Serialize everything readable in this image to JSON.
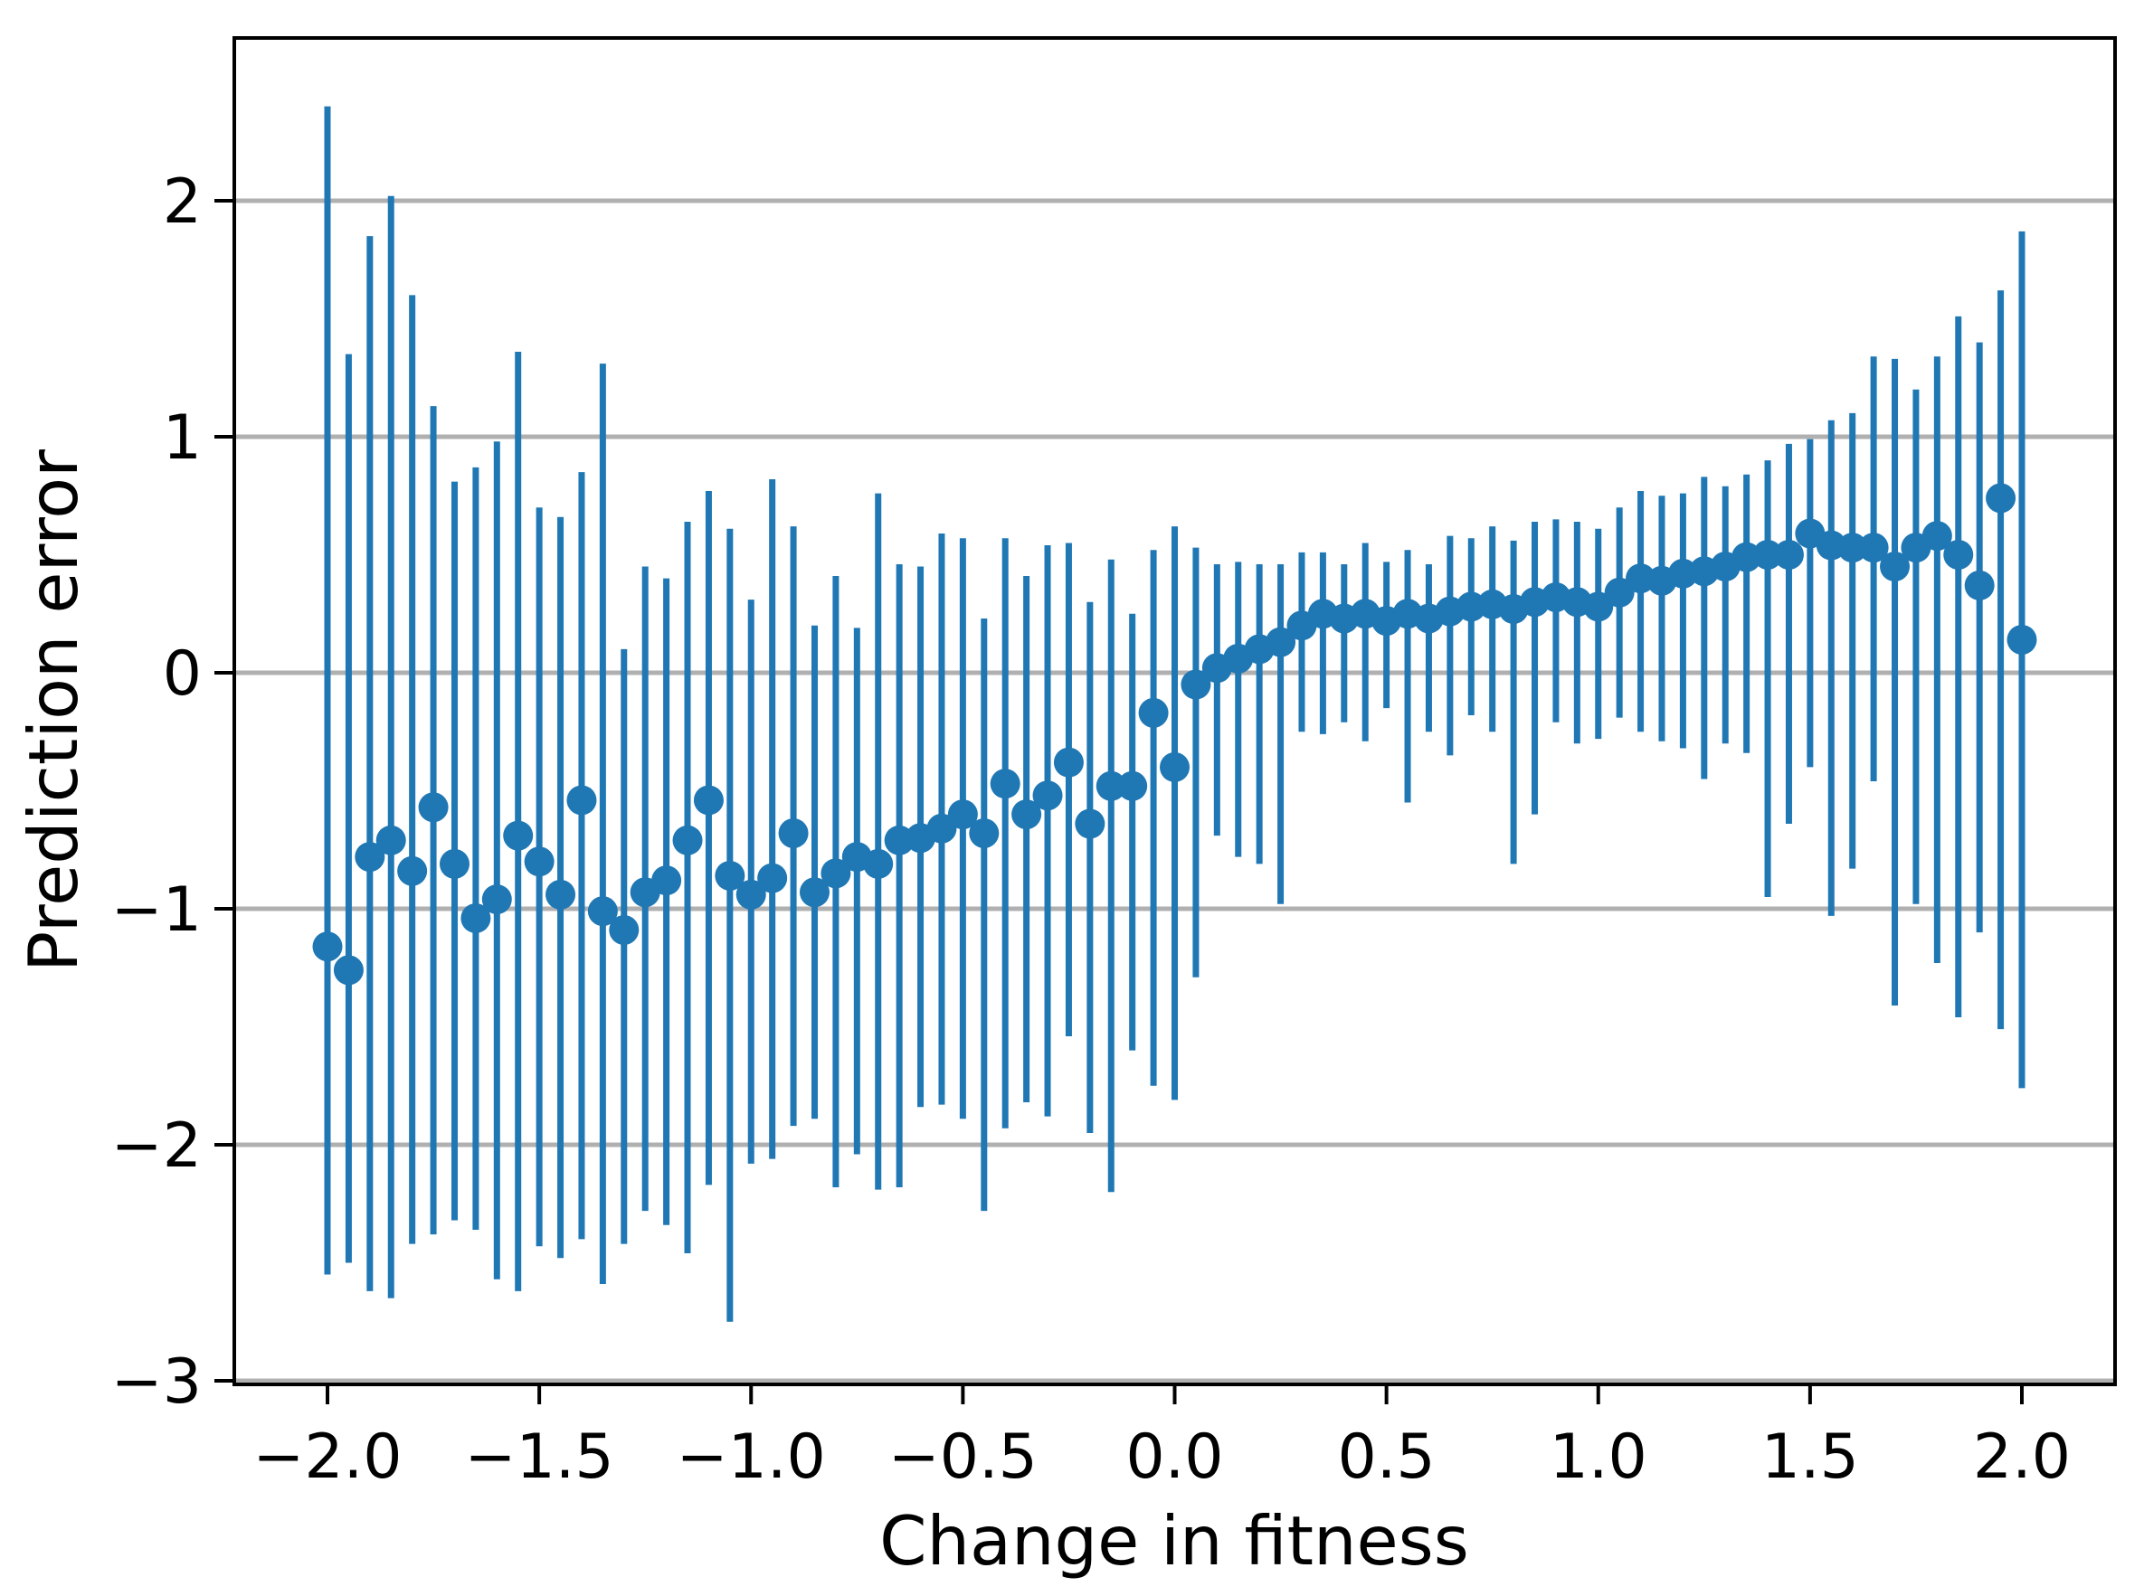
{
  "figure": {
    "background": "#ffffff"
  },
  "chart_data": {
    "type": "scatter",
    "subtype": "errorbar",
    "title": "",
    "xlabel": "Change in fitness",
    "ylabel": "Prediction error",
    "xlim": [
      -2.22,
      2.22
    ],
    "ylim": [
      -3.05,
      2.69
    ],
    "grid": "horizontal",
    "legend": "none",
    "colors": {
      "marker": "#1f77b4",
      "errorbar": "#1f77b4",
      "grid": "#b0b0b0",
      "axis": "#000000",
      "background": "#ffffff"
    },
    "xticks": {
      "values": [
        -2.0,
        -1.5,
        -1.0,
        -0.5,
        0.0,
        0.5,
        1.0,
        1.5,
        2.0
      ],
      "labels": [
        "−2.0",
        "−1.5",
        "−1.0",
        "−0.5",
        "0.0",
        "0.5",
        "1.0",
        "1.5",
        "2.0"
      ]
    },
    "yticks": {
      "values": [
        2,
        1,
        0,
        -1,
        -2,
        -3
      ],
      "labels": [
        "2",
        "1",
        "0",
        "−1",
        "−2",
        "−3"
      ]
    },
    "series": [
      {
        "name": "binned prediction error",
        "x": [
          -2.0,
          -1.95,
          -1.9,
          -1.85,
          -1.8,
          -1.75,
          -1.7,
          -1.65,
          -1.6,
          -1.55,
          -1.5,
          -1.45,
          -1.4,
          -1.35,
          -1.3,
          -1.25,
          -1.2,
          -1.15,
          -1.1,
          -1.05,
          -1.0,
          -0.95,
          -0.9,
          -0.85,
          -0.8,
          -0.75,
          -0.7,
          -0.65,
          -0.6,
          -0.55,
          -0.5,
          -0.45,
          -0.4,
          -0.35,
          -0.3,
          -0.25,
          -0.2,
          -0.15,
          -0.1,
          -0.05,
          0.0,
          0.05,
          0.1,
          0.15,
          0.2,
          0.25,
          0.3,
          0.35,
          0.4,
          0.45,
          0.5,
          0.55,
          0.6,
          0.65,
          0.7,
          0.75,
          0.8,
          0.85,
          0.9,
          0.95,
          1.0,
          1.05,
          1.1,
          1.15,
          1.2,
          1.25,
          1.3,
          1.35,
          1.4,
          1.45,
          1.5,
          1.55,
          1.6,
          1.65,
          1.7,
          1.75,
          1.8,
          1.85,
          1.9,
          1.95,
          2.0
        ],
        "y": [
          -1.16,
          -1.26,
          -0.78,
          -0.71,
          -0.84,
          -0.57,
          -0.81,
          -1.04,
          -0.96,
          -0.69,
          -0.8,
          -0.94,
          -0.54,
          -1.01,
          -1.09,
          -0.93,
          -0.88,
          -0.71,
          -0.54,
          -0.86,
          -0.94,
          -0.87,
          -0.68,
          -0.93,
          -0.85,
          -0.78,
          -0.81,
          -0.71,
          -0.7,
          -0.66,
          -0.6,
          -0.68,
          -0.47,
          -0.6,
          -0.52,
          -0.38,
          -0.64,
          -0.48,
          -0.48,
          -0.17,
          -0.4,
          -0.05,
          0.02,
          0.06,
          0.1,
          0.13,
          0.2,
          0.25,
          0.23,
          0.25,
          0.22,
          0.25,
          0.23,
          0.26,
          0.28,
          0.29,
          0.27,
          0.3,
          0.32,
          0.3,
          0.28,
          0.34,
          0.4,
          0.39,
          0.42,
          0.43,
          0.45,
          0.49,
          0.5,
          0.5,
          0.59,
          0.54,
          0.53,
          0.53,
          0.45,
          0.53,
          0.58,
          0.5,
          0.37,
          0.74,
          0.14
        ],
        "errorbar_top": [
          2.4,
          1.35,
          1.85,
          2.02,
          1.6,
          1.13,
          0.81,
          0.87,
          0.98,
          1.36,
          0.7,
          0.66,
          0.85,
          1.31,
          0.1,
          0.45,
          0.4,
          0.64,
          0.77,
          0.61,
          0.31,
          0.82,
          0.62,
          0.2,
          0.41,
          0.19,
          0.76,
          0.46,
          0.45,
          0.59,
          0.57,
          0.23,
          0.57,
          0.41,
          0.54,
          0.55,
          0.3,
          0.48,
          0.25,
          0.52,
          0.62,
          0.53,
          0.46,
          0.47,
          0.46,
          0.46,
          0.51,
          0.51,
          0.46,
          0.55,
          0.47,
          0.52,
          0.46,
          0.58,
          0.57,
          0.62,
          0.56,
          0.64,
          0.65,
          0.64,
          0.61,
          0.7,
          0.77,
          0.75,
          0.76,
          0.83,
          0.79,
          0.84,
          0.9,
          0.97,
          0.99,
          1.07,
          1.1,
          1.34,
          1.33,
          1.2,
          1.34,
          1.51,
          1.4,
          1.62,
          1.87
        ],
        "errorbar_bottom": [
          -2.55,
          -2.5,
          -2.62,
          -2.65,
          -2.42,
          -2.38,
          -2.32,
          -2.36,
          -2.57,
          -2.62,
          -2.43,
          -2.48,
          -2.4,
          -2.59,
          -2.42,
          -2.28,
          -2.34,
          -2.46,
          -2.17,
          -2.75,
          -2.08,
          -2.06,
          -1.92,
          -1.89,
          -2.18,
          -2.04,
          -2.19,
          -2.18,
          -1.84,
          -1.83,
          -1.89,
          -2.28,
          -1.93,
          -1.82,
          -1.88,
          -1.54,
          -1.95,
          -2.2,
          -1.6,
          -1.75,
          -1.81,
          -1.29,
          -0.69,
          -0.78,
          -0.81,
          -0.98,
          -0.25,
          -0.26,
          -0.21,
          -0.29,
          -0.15,
          -0.55,
          -0.25,
          -0.35,
          -0.18,
          -0.25,
          -0.81,
          -0.6,
          -0.21,
          -0.3,
          -0.28,
          -0.19,
          -0.25,
          -0.29,
          -0.32,
          -0.45,
          -0.3,
          -0.34,
          -0.95,
          -0.64,
          -0.4,
          -1.03,
          -0.83,
          -0.46,
          -1.41,
          -0.98,
          -1.23,
          -1.46,
          -1.1,
          -1.51,
          -1.76
        ]
      }
    ]
  }
}
